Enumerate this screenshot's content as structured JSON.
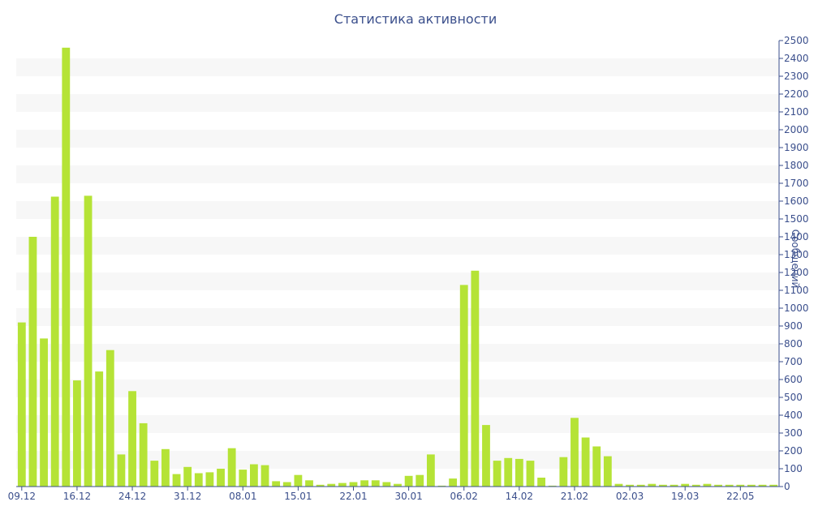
{
  "chart_data": {
    "type": "bar",
    "title": "Статистика активности",
    "ylabel": "Сообщений",
    "xlabel": "",
    "ylim": [
      0,
      2500
    ],
    "y_ticks": [
      0,
      100,
      200,
      300,
      400,
      500,
      600,
      700,
      800,
      900,
      1000,
      1100,
      1200,
      1300,
      1400,
      1500,
      1600,
      1700,
      1800,
      1900,
      2000,
      2100,
      2200,
      2300,
      2400,
      2500
    ],
    "y_axis_position": "right",
    "grid": "alternating horizontal bands",
    "bar_color": "#b5e336",
    "x_tick_labels": [
      "09.12",
      "16.12",
      "24.12",
      "31.12",
      "08.01",
      "15.01",
      "22.01",
      "30.01",
      "06.02",
      "14.02",
      "21.02",
      "02.03",
      "19.03",
      "22.05"
    ],
    "x_tick_indices": [
      0,
      5,
      10,
      15,
      20,
      25,
      30,
      35,
      40,
      45,
      50,
      55,
      60,
      65
    ],
    "values": [
      920,
      1400,
      830,
      1625,
      2460,
      595,
      1630,
      645,
      765,
      180,
      535,
      355,
      145,
      210,
      70,
      110,
      75,
      80,
      100,
      215,
      95,
      125,
      120,
      30,
      25,
      65,
      35,
      10,
      15,
      20,
      25,
      35,
      35,
      25,
      15,
      60,
      65,
      180,
      5,
      45,
      1130,
      1210,
      345,
      145,
      160,
      155,
      145,
      50,
      5,
      165,
      385,
      275,
      225,
      170,
      15,
      10,
      10,
      15,
      10,
      10,
      15,
      10,
      15,
      10,
      10,
      10,
      10,
      10,
      10
    ]
  }
}
